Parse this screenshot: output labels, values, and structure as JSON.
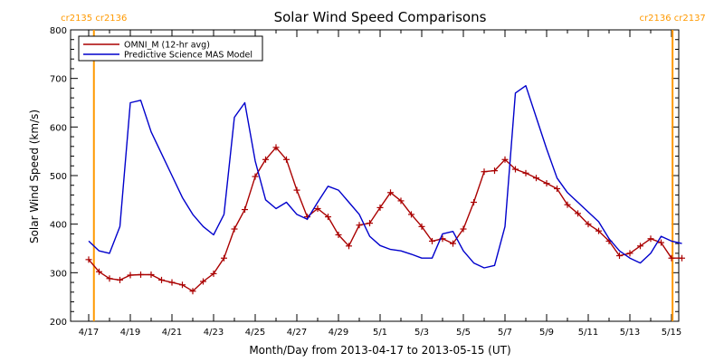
{
  "chart_data": {
    "type": "line",
    "title": "Solar Wind Speed Comparisons",
    "xlabel": "Month/Day from 2013-04-17 to 2013-05-15 (UT)",
    "ylabel": "Solar Wind Speed (km/s)",
    "xlim": [
      0,
      29
    ],
    "ylim": [
      200,
      800
    ],
    "yticks": [
      200,
      300,
      400,
      500,
      600,
      700,
      800
    ],
    "xticks": [
      {
        "x": 0,
        "label": "4/17"
      },
      {
        "x": 2,
        "label": "4/19"
      },
      {
        "x": 4,
        "label": "4/21"
      },
      {
        "x": 6,
        "label": "4/23"
      },
      {
        "x": 8,
        "label": "4/25"
      },
      {
        "x": 10,
        "label": "4/27"
      },
      {
        "x": 12,
        "label": "4/29"
      },
      {
        "x": 14,
        "label": "5/1"
      },
      {
        "x": 16,
        "label": "5/3"
      },
      {
        "x": 18,
        "label": "5/5"
      },
      {
        "x": 20,
        "label": "5/7"
      },
      {
        "x": 22,
        "label": "5/9"
      },
      {
        "x": 24,
        "label": "5/11"
      },
      {
        "x": 26,
        "label": "5/13"
      },
      {
        "x": 28,
        "label": "5/15"
      }
    ],
    "carrington_markers": [
      {
        "x": 0.25,
        "label": "cr2135 cr2136",
        "color": "#ff9900"
      },
      {
        "x": 28.05,
        "label": "cr2136 cr2137",
        "color": "#ff9900"
      }
    ],
    "legend": {
      "placement": "top-left"
    },
    "series": [
      {
        "name": "OMNI_M (12-hr avg)",
        "color": "#aa0000",
        "markers": true,
        "x": [
          0.0,
          0.5,
          1.0,
          1.5,
          2.0,
          2.5,
          3.0,
          3.5,
          4.0,
          4.5,
          5.0,
          5.5,
          6.0,
          6.5,
          7.0,
          7.5,
          8.0,
          8.5,
          9.0,
          9.5,
          10.0,
          10.5,
          11.0,
          11.5,
          12.0,
          12.5,
          13.0,
          13.5,
          14.0,
          14.5,
          15.0,
          15.5,
          16.0,
          16.5,
          17.0,
          17.5,
          18.0,
          18.5,
          19.0,
          19.5,
          20.0,
          20.5,
          21.0,
          21.5,
          22.0,
          22.5,
          23.0,
          23.5,
          24.0,
          24.5,
          25.0,
          25.5,
          26.0,
          26.5,
          27.0,
          27.5,
          28.0,
          28.5
        ],
        "y": [
          327,
          302,
          288,
          285,
          295,
          296,
          296,
          285,
          280,
          275,
          262,
          282,
          298,
          330,
          390,
          430,
          498,
          533,
          558,
          533,
          470,
          415,
          432,
          415,
          378,
          355,
          398,
          402,
          434,
          465,
          448,
          420,
          395,
          365,
          370,
          360,
          390,
          445,
          508,
          510,
          533,
          513,
          505,
          495,
          484,
          473,
          440,
          422,
          400,
          386,
          365,
          335,
          340,
          355,
          370,
          362,
          330,
          330
        ]
      },
      {
        "name": "Predictive Science MAS Model",
        "color": "#0000cc",
        "markers": false,
        "x": [
          0.0,
          0.5,
          1.0,
          1.5,
          2.0,
          2.5,
          3.0,
          3.5,
          4.0,
          4.5,
          5.0,
          5.5,
          6.0,
          6.5,
          7.0,
          7.5,
          8.0,
          8.5,
          9.0,
          9.5,
          10.0,
          10.5,
          11.0,
          11.5,
          12.0,
          12.5,
          13.0,
          13.5,
          14.0,
          14.5,
          15.0,
          15.5,
          16.0,
          16.5,
          17.0,
          17.5,
          18.0,
          18.5,
          19.0,
          19.5,
          20.0,
          20.5,
          21.0,
          21.5,
          22.0,
          22.5,
          23.0,
          23.5,
          24.0,
          24.5,
          25.0,
          25.5,
          26.0,
          26.5,
          27.0,
          27.5,
          28.0,
          28.5
        ],
        "y": [
          365,
          345,
          340,
          395,
          650,
          655,
          590,
          545,
          500,
          455,
          420,
          395,
          378,
          420,
          620,
          650,
          530,
          450,
          432,
          445,
          420,
          410,
          445,
          478,
          470,
          445,
          420,
          375,
          356,
          348,
          345,
          338,
          330,
          330,
          380,
          385,
          345,
          320,
          310,
          315,
          395,
          670,
          685,
          620,
          555,
          495,
          465,
          445,
          425,
          405,
          370,
          345,
          330,
          320,
          340,
          375,
          365,
          360
        ]
      }
    ]
  }
}
